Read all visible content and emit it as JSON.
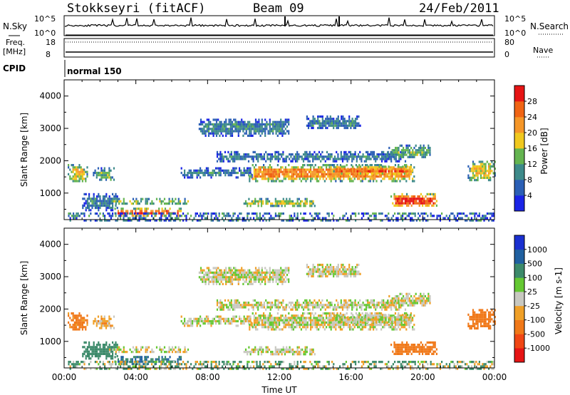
{
  "header": {
    "station": "Stokkseyri (fitACF)",
    "beam": "Beam 09",
    "date": "24/Feb/2011"
  },
  "top_strip": {
    "left_label": "N.Sky",
    "left_ticks": [
      "10^5",
      "10^0"
    ],
    "right_ticks": [
      "10^5",
      "10^0"
    ],
    "right_label": "N.Search"
  },
  "freq_strip": {
    "left_label_1": "Freq.",
    "left_label_2": "[MHz]",
    "left_ticks": [
      "18",
      "8"
    ],
    "right_ticks": [
      "80",
      "0"
    ],
    "right_label": "Nave"
  },
  "cpid": {
    "label": "CPID",
    "mode": "normal 150"
  },
  "chart_data": [
    {
      "type": "heatmap",
      "name": "power",
      "ylabel": "Slant Range [km]",
      "xlabel": "Time UT",
      "x_ticks": [
        "00:00",
        "04:00",
        "08:00",
        "12:00",
        "16:00",
        "20:00",
        "00:00"
      ],
      "x_range_hours": [
        0,
        24
      ],
      "y_ticks": [
        "1000",
        "2000",
        "3000",
        "4000"
      ],
      "y_tick_values": [
        1000,
        2000,
        3000,
        4000
      ],
      "ylim": [
        180,
        4500
      ],
      "colorbar": {
        "label": "Power [dB]",
        "ticks": [
          "4",
          "8",
          "12",
          "16",
          "20",
          "24",
          "28"
        ],
        "colors": [
          "#1a24e6",
          "#2b5fb5",
          "#3d8a8a",
          "#64b450",
          "#f0c81e",
          "#f59628",
          "#f06414",
          "#e61414"
        ]
      }
    },
    {
      "type": "heatmap",
      "name": "velocity",
      "ylabel": "Slant Range [km]",
      "xlabel": "Time UT",
      "x_ticks": [
        "00:00",
        "04:00",
        "08:00",
        "12:00",
        "16:00",
        "20:00",
        "00:00"
      ],
      "x_range_hours": [
        0,
        24
      ],
      "y_ticks": [
        "1000",
        "2000",
        "3000",
        "4000"
      ],
      "y_tick_values": [
        1000,
        2000,
        3000,
        4000
      ],
      "ylim": [
        180,
        4500
      ],
      "colorbar": {
        "label": "Velocity [m s-1]",
        "ticks": [
          "1000",
          "500",
          "100",
          "25",
          "-25",
          "-100",
          "-500",
          "-1000"
        ],
        "colors": [
          "#1a30d0",
          "#2060a0",
          "#3c8a6a",
          "#64c832",
          "#c8c8c0",
          "#f0a028",
          "#f07818",
          "#f04614",
          "#e61414"
        ]
      }
    }
  ],
  "echo_regions": [
    {
      "t0": 0.2,
      "t1": 1.3,
      "r0": 1350,
      "r1": 1900,
      "power": 16,
      "velocity": -150
    },
    {
      "t0": 1.6,
      "t1": 2.8,
      "r0": 1400,
      "r1": 1800,
      "power": 12,
      "velocity": -50
    },
    {
      "t0": 1.0,
      "t1": 3.0,
      "r0": 500,
      "r1": 1000,
      "power": 8,
      "velocity": 200
    },
    {
      "t0": 2.5,
      "t1": 7.0,
      "r0": 650,
      "r1": 850,
      "power": 16,
      "velocity": 0
    },
    {
      "t0": 2.8,
      "t1": 6.5,
      "r0": 300,
      "r1": 550,
      "power": 28,
      "velocity": 300
    },
    {
      "t0": 6.5,
      "t1": 10.5,
      "r0": 1500,
      "r1": 1800,
      "power": 8,
      "velocity": 0
    },
    {
      "t0": 10.3,
      "t1": 19.5,
      "r0": 1400,
      "r1": 1900,
      "power": 20,
      "velocity": 0
    },
    {
      "t0": 15.0,
      "t1": 19.5,
      "r0": 1600,
      "r1": 1850,
      "power": 26,
      "velocity": 0
    },
    {
      "t0": 8.5,
      "t1": 19.0,
      "r0": 2000,
      "r1": 2300,
      "power": 8,
      "velocity": 0
    },
    {
      "t0": 10.0,
      "t1": 14.0,
      "r0": 600,
      "r1": 850,
      "power": 16,
      "velocity": 0
    },
    {
      "t0": 18.0,
      "t1": 20.5,
      "r0": 2100,
      "r1": 2500,
      "power": 12,
      "velocity": 0
    },
    {
      "t0": 18.2,
      "t1": 20.8,
      "r0": 600,
      "r1": 1000,
      "power": 26,
      "velocity": -300
    },
    {
      "t0": 22.5,
      "t1": 24.0,
      "r0": 1400,
      "r1": 2000,
      "power": 16,
      "velocity": -200
    },
    {
      "t0": 7.5,
      "t1": 12.5,
      "r0": 2800,
      "r1": 3300,
      "power": 8,
      "velocity": 0
    },
    {
      "t0": 13.5,
      "t1": 16.5,
      "r0": 3000,
      "r1": 3400,
      "power": 8,
      "velocity": 0
    }
  ]
}
